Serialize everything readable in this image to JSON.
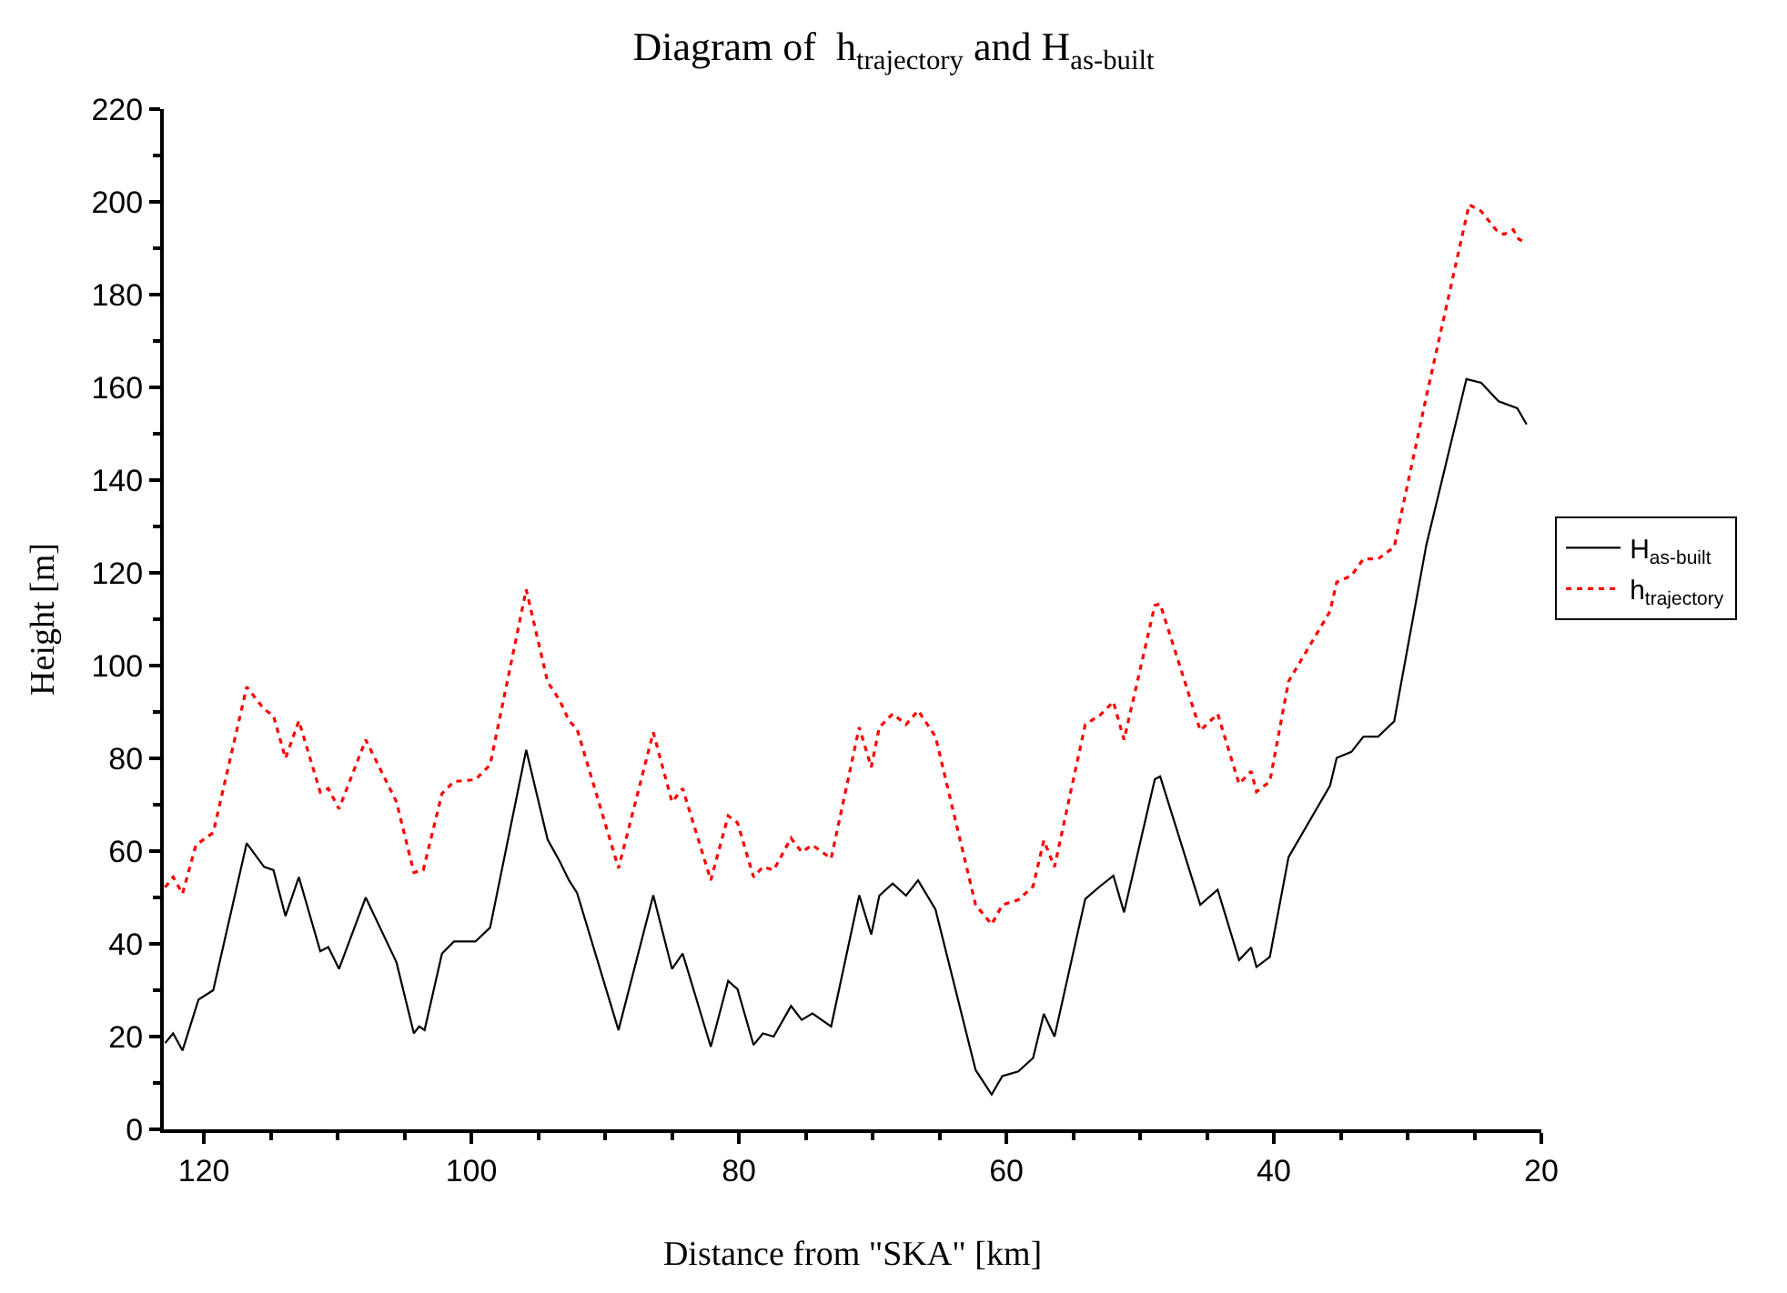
{
  "chart_data": {
    "type": "line",
    "title": "Diagram of  h$_{trajectory}$ and H$_{as-built}$",
    "xlabel": "Distance from \"SKA\" [km]",
    "ylabel": "Height [m]",
    "xlim": [
      123,
      20
    ],
    "xticks": [
      120,
      100,
      80,
      60,
      40,
      20
    ],
    "ylim": [
      0,
      220
    ],
    "yticks": [
      0,
      20,
      40,
      60,
      80,
      100,
      120,
      140,
      160,
      180,
      200,
      220
    ],
    "legend": "right",
    "marker": "none",
    "series": [
      {
        "name": "H$_{as-built}$",
        "color": "#000000",
        "line_style": "solid",
        "x": [
          122.9,
          122.3,
          121.6,
          120.4,
          119.3,
          116.8,
          115.5,
          114.8,
          113.9,
          112.9,
          111.3,
          110.7,
          109.9,
          107.9,
          105.6,
          104.3,
          103.9,
          103.5,
          102.2,
          101.3,
          99.7,
          98.6,
          95.9,
          94.3,
          93.4,
          92.7,
          92.1,
          89.0,
          86.4,
          85.0,
          84.2,
          82.1,
          80.8,
          80.1,
          78.9,
          78.2,
          77.4,
          76.1,
          75.3,
          74.5,
          73.1,
          71.0,
          70.1,
          69.5,
          68.5,
          67.5,
          66.6,
          65.3,
          62.3,
          61.1,
          60.3,
          59.1,
          58.0,
          57.2,
          56.4,
          54.1,
          53.0,
          52.0,
          51.2,
          48.9,
          48.5,
          45.5,
          44.2,
          42.6,
          41.7,
          41.3,
          40.3,
          38.9,
          35.8,
          35.3,
          34.2,
          33.3,
          32.2,
          31.0,
          28.6,
          25.6,
          24.5,
          23.2,
          21.8,
          21.1
        ],
        "values": [
          18.6,
          20.7,
          17,
          28,
          30,
          61.7,
          56.6,
          55.9,
          46,
          54.4,
          38.4,
          39.3,
          34.6,
          50,
          36,
          20.7,
          22.2,
          21.4,
          37.9,
          40.5,
          40.5,
          43.5,
          81.8,
          62.5,
          57.8,
          53.7,
          51,
          21.4,
          50.5,
          34.6,
          37.9,
          17.8,
          32,
          30.2,
          18.2,
          20.7,
          20,
          26.6,
          23.6,
          25,
          22.2,
          50.5,
          42,
          50.4,
          53,
          50.4,
          53.7,
          47.4,
          12.8,
          7.5,
          11.5,
          12.5,
          15.4,
          24.9,
          20,
          49.7,
          52.4,
          54.7,
          46.8,
          75.5,
          76.1,
          48.4,
          51.7,
          36.5,
          39.2,
          35,
          37.2,
          58.7,
          74.1,
          80.1,
          81.4,
          84.7,
          84.7,
          88,
          126,
          161.8,
          161,
          157,
          155.5,
          152
        ]
      },
      {
        "name": "h$_{trajectory}$",
        "color": "#ff0000",
        "line_style": "dotted",
        "x": [
          122.9,
          122.3,
          121.6,
          120.6,
          119.3,
          116.8,
          115.5,
          114.8,
          113.9,
          112.9,
          111.3,
          110.7,
          109.9,
          107.9,
          105.6,
          104.3,
          103.6,
          102.2,
          101.3,
          99.7,
          98.6,
          95.9,
          94.3,
          93.4,
          92.7,
          92.1,
          89.0,
          86.4,
          85.0,
          84.2,
          82.1,
          80.8,
          80.1,
          78.9,
          78.2,
          77.4,
          76.1,
          75.3,
          74.5,
          73.1,
          71.0,
          70.1,
          69.5,
          68.5,
          67.5,
          66.6,
          65.3,
          62.3,
          61.1,
          60.3,
          59.1,
          58.0,
          57.2,
          56.4,
          54.1,
          53.0,
          52.0,
          51.2,
          48.9,
          48.5,
          45.5,
          44.2,
          42.6,
          41.7,
          41.3,
          40.3,
          38.9,
          35.8,
          35.3,
          34.2,
          33.3,
          32.2,
          31.0,
          28.6,
          25.4,
          24.5,
          23.4,
          22.8,
          22.1,
          21.7,
          21.1
        ],
        "values": [
          52.2,
          54.4,
          50.8,
          61.3,
          64,
          95.4,
          90.6,
          89.2,
          80,
          88.1,
          72.7,
          73.5,
          69.1,
          84,
          70.6,
          55.4,
          55.9,
          72.4,
          75,
          75.4,
          78.6,
          116.4,
          96.5,
          92.5,
          88.1,
          86.3,
          56.3,
          85.6,
          70.6,
          73.5,
          53.7,
          67.6,
          66.1,
          54.4,
          56.6,
          55.9,
          62.8,
          59.8,
          61.3,
          58.4,
          86.7,
          78.1,
          86.7,
          89.6,
          87.3,
          90.3,
          84.7,
          48.4,
          44.2,
          48.4,
          49.5,
          52.4,
          62.3,
          56.6,
          87.3,
          89.3,
          92.2,
          84,
          113,
          113.3,
          86,
          89.6,
          74.5,
          77.2,
          72.8,
          75,
          96.6,
          111.7,
          118,
          119.4,
          123,
          123,
          125.6,
          158,
          199.4,
          198,
          194,
          193,
          194,
          192,
          191
        ]
      }
    ]
  }
}
